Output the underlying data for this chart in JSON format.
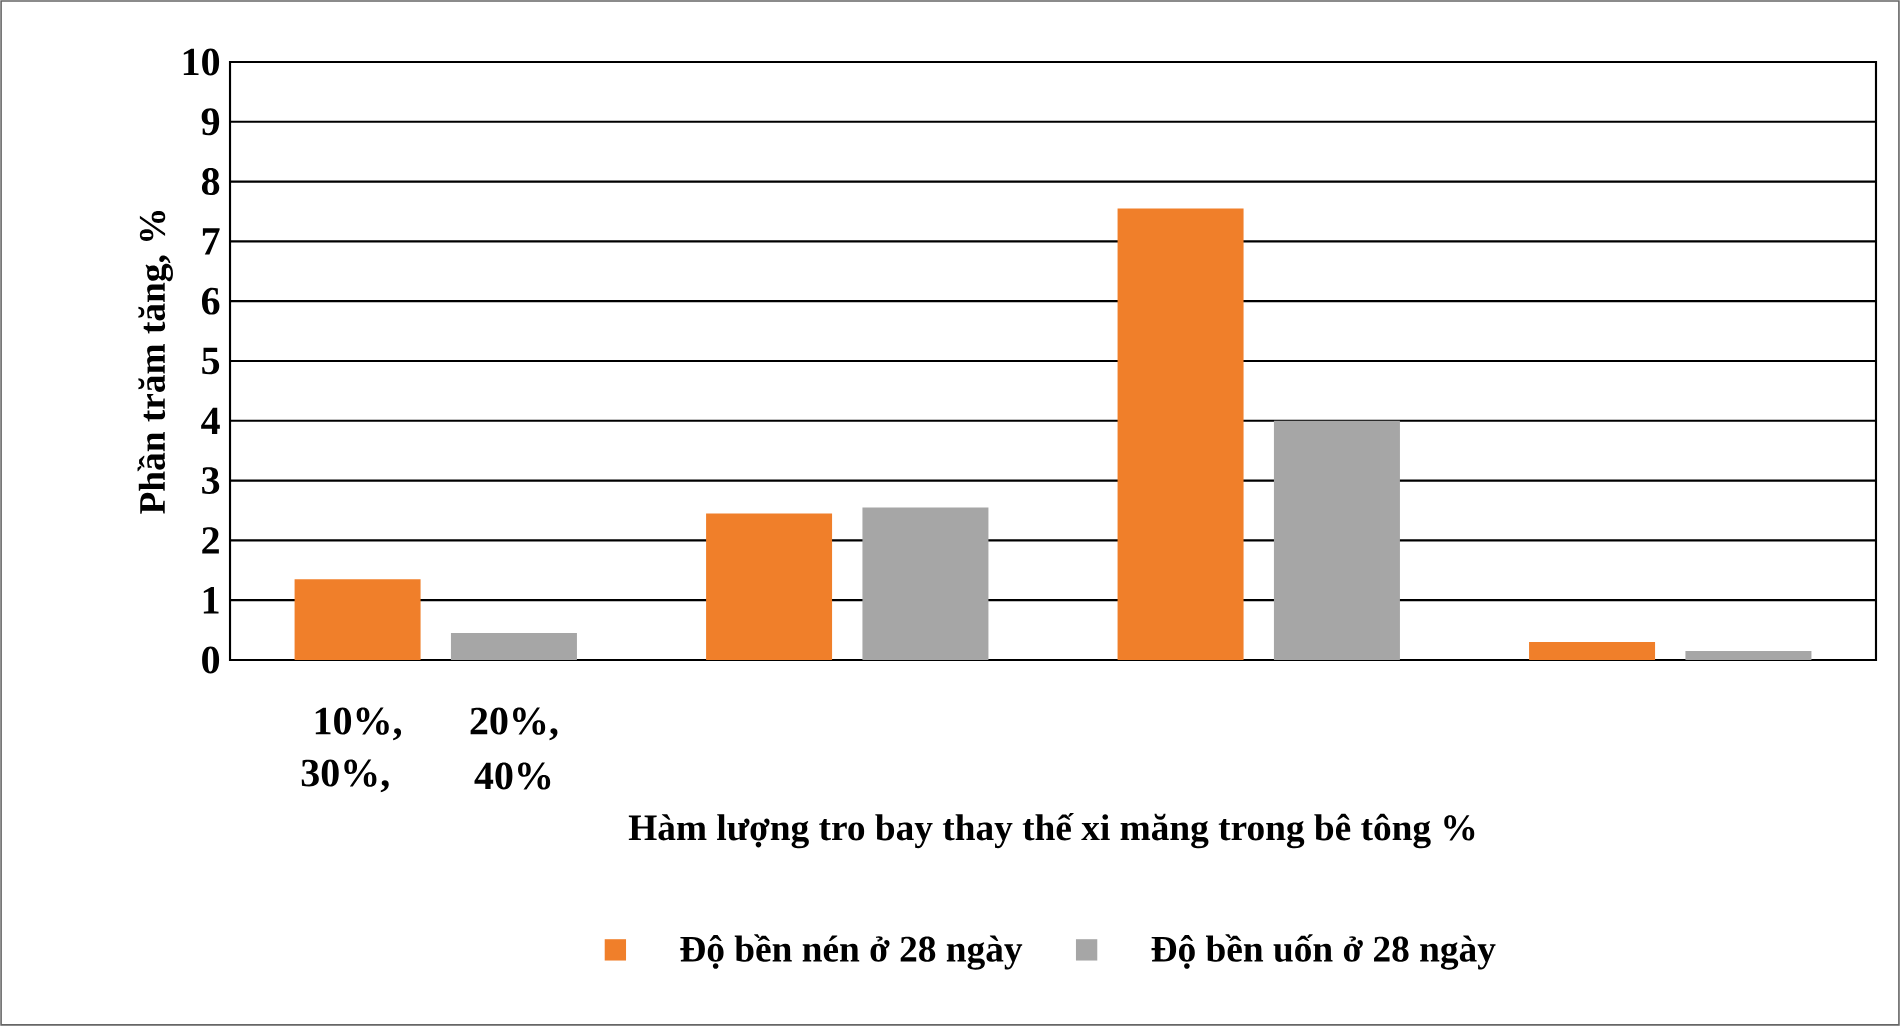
{
  "chart_data": {
    "type": "bar",
    "xlabel": "Hàm lượng tro bay thay thế xi măng trong bê tông %",
    "ylabel": "Phần trăm tăng, %",
    "categories": [
      null,
      null,
      null,
      null
    ],
    "series": [
      {
        "name": "Độ bền nén ở 28 ngày",
        "color": "#f07f2a",
        "values": [
          1.35,
          2.45,
          7.55,
          0.3
        ]
      },
      {
        "name": "Độ bền uốn ở 28 ngày",
        "color": "#a6a6a6",
        "values": [
          0.45,
          2.55,
          4.0,
          0.15
        ]
      }
    ],
    "ylim": [
      0,
      10
    ],
    "yticks": [
      0,
      1,
      2,
      3,
      4,
      5,
      6,
      7,
      8,
      9,
      10
    ],
    "grid": "y",
    "legend": "bottom",
    "annotations": [
      "10%,",
      "20%,",
      "30%,",
      "40%"
    ]
  }
}
